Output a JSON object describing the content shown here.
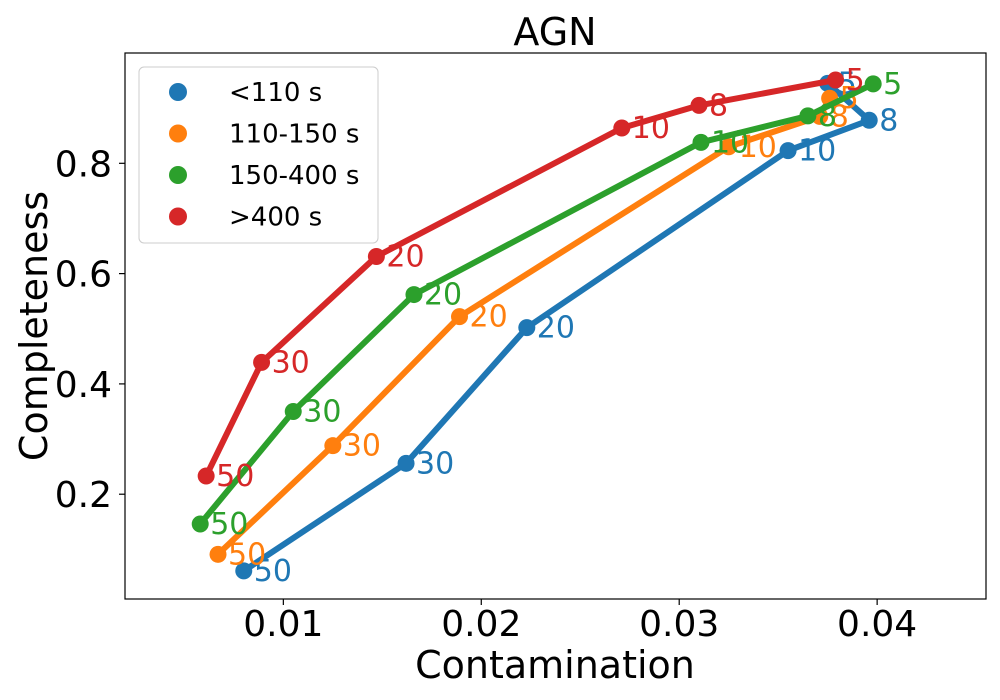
{
  "chart_data": {
    "type": "line",
    "title": "AGN",
    "xlabel": "Contamination",
    "ylabel": "Completeness",
    "xlim": [
      0.002,
      0.0455
    ],
    "ylim": [
      0.01,
      1.0
    ],
    "xticks": [
      0.01,
      0.02,
      0.03,
      0.04
    ],
    "xtick_labels": [
      "0.01",
      "0.02",
      "0.03",
      "0.04"
    ],
    "yticks": [
      0.2,
      0.4,
      0.6,
      0.8
    ],
    "ytick_labels": [
      "0.2",
      "0.4",
      "0.6",
      "0.8"
    ],
    "legend_position": "top-left",
    "series": [
      {
        "name": "<110 s",
        "color": "#1f77b4",
        "points": [
          {
            "x": 0.0375,
            "y": 0.945,
            "label": "5"
          },
          {
            "x": 0.0396,
            "y": 0.878,
            "label": "8"
          },
          {
            "x": 0.0355,
            "y": 0.823,
            "label": "10"
          },
          {
            "x": 0.0223,
            "y": 0.502,
            "label": "20"
          },
          {
            "x": 0.0162,
            "y": 0.256,
            "label": "30"
          },
          {
            "x": 0.008,
            "y": 0.061,
            "label": "50"
          }
        ]
      },
      {
        "name": "110-150 s",
        "color": "#ff7f0e",
        "points": [
          {
            "x": 0.0376,
            "y": 0.918,
            "label": "5"
          },
          {
            "x": 0.0371,
            "y": 0.885,
            "label": "8"
          },
          {
            "x": 0.0325,
            "y": 0.83,
            "label": "10"
          },
          {
            "x": 0.0189,
            "y": 0.522,
            "label": "20"
          },
          {
            "x": 0.0125,
            "y": 0.288,
            "label": "30"
          },
          {
            "x": 0.0067,
            "y": 0.091,
            "label": "50"
          }
        ]
      },
      {
        "name": "150-400 s",
        "color": "#2ca02c",
        "points": [
          {
            "x": 0.0398,
            "y": 0.944,
            "label": "5"
          },
          {
            "x": 0.0365,
            "y": 0.886,
            "label": "8"
          },
          {
            "x": 0.0311,
            "y": 0.838,
            "label": "10"
          },
          {
            "x": 0.0166,
            "y": 0.562,
            "label": "20"
          },
          {
            "x": 0.0105,
            "y": 0.35,
            "label": "30"
          },
          {
            "x": 0.0058,
            "y": 0.146,
            "label": "50"
          }
        ]
      },
      {
        "name": ">400 s",
        "color": "#d62728",
        "points": [
          {
            "x": 0.0379,
            "y": 0.951,
            "label": "5"
          },
          {
            "x": 0.031,
            "y": 0.905,
            "label": "8"
          },
          {
            "x": 0.0271,
            "y": 0.864,
            "label": "10"
          },
          {
            "x": 0.0147,
            "y": 0.631,
            "label": "20"
          },
          {
            "x": 0.0089,
            "y": 0.439,
            "label": "30"
          },
          {
            "x": 0.0061,
            "y": 0.233,
            "label": "50"
          }
        ]
      }
    ]
  }
}
